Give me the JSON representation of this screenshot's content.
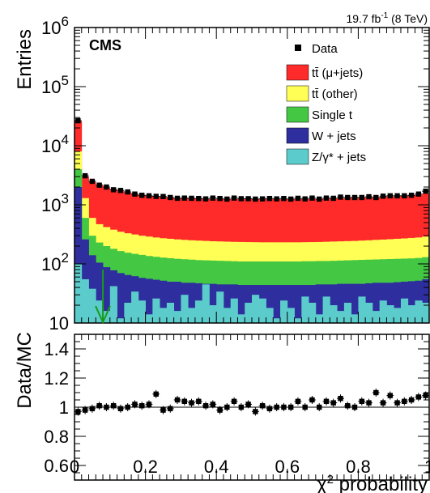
{
  "chart_data": [
    {
      "type": "stacked-histogram",
      "experiment": "CMS",
      "lumi_text": "19.7 fb",
      "lumi_sup": "-1",
      "lumi_energy": " (8 TeV)",
      "ylabel": "Entries",
      "yscale": "log",
      "ylim": [
        10,
        1000000
      ],
      "xlim": [
        0,
        1
      ],
      "nbins": 50,
      "y_ticks": [
        {
          "value": 10,
          "base": "10",
          "exp": ""
        },
        {
          "value": 100,
          "base": "10",
          "exp": "2"
        },
        {
          "value": 1000,
          "base": "10",
          "exp": "3"
        },
        {
          "value": 10000,
          "base": "10",
          "exp": "4"
        },
        {
          "value": 100000,
          "base": "10",
          "exp": "5"
        },
        {
          "value": 1000000,
          "base": "10",
          "exp": "6"
        }
      ],
      "legend": [
        {
          "key": "data",
          "label": "Data",
          "color": "#000000",
          "marker": "square"
        },
        {
          "key": "ttbar_mujets",
          "label": "tt̄ (μ+jets)",
          "color": "#ff2a2a"
        },
        {
          "key": "ttbar_other",
          "label": "tt̄ (other)",
          "color": "#ffff55"
        },
        {
          "key": "single_t",
          "label": "Single t",
          "color": "#44c844"
        },
        {
          "key": "wjets",
          "label": "W + jets",
          "color": "#2e2e9e"
        },
        {
          "key": "zjets",
          "label": "Z/γ* + jets",
          "color": "#5ccbcb"
        }
      ],
      "cut_arrow_x": 0.08,
      "series_upper_edges": {
        "zjets": [
          100,
          55,
          38,
          24,
          16,
          42,
          12,
          22,
          34,
          24,
          14,
          26,
          18,
          22,
          16,
          30,
          18,
          24,
          45,
          20,
          34,
          18,
          26,
          14,
          22,
          30,
          26,
          18,
          12,
          24,
          18,
          12,
          28,
          22,
          14,
          28,
          20,
          16,
          22,
          14,
          28,
          22,
          16,
          24,
          20,
          18,
          26,
          20,
          24,
          22
        ],
        "wjets": [
          2000,
          260,
          140,
          105,
          88,
          78,
          70,
          65,
          62,
          58,
          56,
          54,
          52,
          50,
          50,
          48,
          48,
          47,
          46,
          46,
          45,
          45,
          45,
          44,
          44,
          44,
          44,
          44,
          44,
          44,
          44,
          44,
          44,
          44,
          45,
          45,
          45,
          46,
          46,
          46,
          46,
          47,
          48,
          48,
          48,
          49,
          50,
          51,
          52,
          55
        ],
        "single_t": [
          4000,
          600,
          300,
          230,
          200,
          180,
          165,
          155,
          148,
          142,
          136,
          132,
          128,
          125,
          122,
          120,
          118,
          116,
          115,
          114,
          113,
          112,
          111,
          110,
          110,
          110,
          110,
          110,
          110,
          110,
          110,
          110,
          111,
          111,
          112,
          112,
          113,
          114,
          115,
          116,
          117,
          118,
          119,
          120,
          121,
          122,
          123,
          124,
          126,
          130
        ],
        "ttbar_other": [
          8000,
          1300,
          600,
          470,
          420,
          380,
          350,
          330,
          315,
          300,
          290,
          280,
          272,
          266,
          260,
          255,
          251,
          248,
          245,
          242,
          240,
          238,
          236,
          235,
          234,
          233,
          232,
          232,
          232,
          232,
          232,
          232,
          233,
          234,
          235,
          237,
          239,
          241,
          243,
          245,
          248,
          251,
          255,
          258,
          262,
          266,
          270,
          275,
          280,
          290
        ],
        "ttbar_mujets": [
          26000,
          3000,
          2450,
          2150,
          1950,
          1800,
          1700,
          1600,
          1530,
          1470,
          1420,
          1380,
          1350,
          1320,
          1300,
          1290,
          1280,
          1270,
          1265,
          1260,
          1255,
          1250,
          1250,
          1250,
          1250,
          1250,
          1250,
          1250,
          1250,
          1250,
          1250,
          1250,
          1255,
          1260,
          1265,
          1270,
          1280,
          1290,
          1300,
          1310,
          1320,
          1335,
          1350,
          1365,
          1380,
          1400,
          1420,
          1450,
          1480,
          1550
        ]
      },
      "data_values": [
        26500,
        3100,
        2500,
        2150,
        2000,
        1800,
        1750,
        1650,
        1520,
        1450,
        1420,
        1390,
        1380,
        1330,
        1290,
        1300,
        1290,
        1280,
        1260,
        1300,
        1280,
        1250,
        1300,
        1270,
        1270,
        1250,
        1260,
        1280,
        1260,
        1280,
        1250,
        1290,
        1260,
        1300,
        1250,
        1300,
        1290,
        1350,
        1330,
        1330,
        1330,
        1370,
        1330,
        1400,
        1420,
        1420,
        1420,
        1450,
        1520,
        1700
      ]
    },
    {
      "type": "ratio-scatter",
      "ylabel": "Data/MC",
      "xlabel": "χ",
      "xlabel_sup": "2",
      "xlabel_rest": " probability",
      "ylim": [
        0.5,
        1.5
      ],
      "xlim": [
        0,
        1
      ],
      "x_ticks": [
        {
          "value": 0,
          "label": "0"
        },
        {
          "value": 0.2,
          "label": "0.2"
        },
        {
          "value": 0.4,
          "label": "0.4"
        },
        {
          "value": 0.6,
          "label": "0.6"
        },
        {
          "value": 0.8,
          "label": "0.8"
        },
        {
          "value": 1.0,
          "label": "1"
        }
      ],
      "y_ticks": [
        {
          "value": 0.6,
          "label": "0.6"
        },
        {
          "value": 0.8,
          "label": "0.8"
        },
        {
          "value": 1.0,
          "label": "1"
        },
        {
          "value": 1.2,
          "label": "1.2"
        },
        {
          "value": 1.4,
          "label": "1.4"
        }
      ],
      "reference_line": 1.0,
      "x_centers": [
        0.01,
        0.03,
        0.05,
        0.07,
        0.09,
        0.11,
        0.13,
        0.15,
        0.17,
        0.19,
        0.21,
        0.23,
        0.25,
        0.27,
        0.29,
        0.31,
        0.33,
        0.35,
        0.37,
        0.39,
        0.41,
        0.43,
        0.45,
        0.47,
        0.49,
        0.51,
        0.53,
        0.55,
        0.57,
        0.59,
        0.61,
        0.63,
        0.65,
        0.67,
        0.69,
        0.71,
        0.73,
        0.75,
        0.77,
        0.79,
        0.81,
        0.83,
        0.85,
        0.87,
        0.89,
        0.91,
        0.93,
        0.95,
        0.97,
        0.99
      ],
      "values": [
        0.97,
        0.98,
        0.99,
        1.01,
        1.0,
        1.01,
        0.99,
        1.0,
        1.02,
        1.01,
        1.02,
        1.09,
        0.98,
        0.99,
        1.05,
        1.04,
        1.03,
        1.04,
        1.01,
        1.02,
        0.98,
        1.0,
        1.04,
        1.0,
        1.02,
        0.97,
        1.01,
        0.99,
        1.0,
        1.0,
        1.0,
        1.04,
        1.0,
        1.05,
        1.0,
        1.04,
        1.03,
        1.06,
        1.01,
        1.0,
        1.04,
        1.03,
        1.1,
        1.03,
        1.08,
        1.03,
        1.04,
        1.05,
        1.07,
        1.08
      ]
    }
  ]
}
